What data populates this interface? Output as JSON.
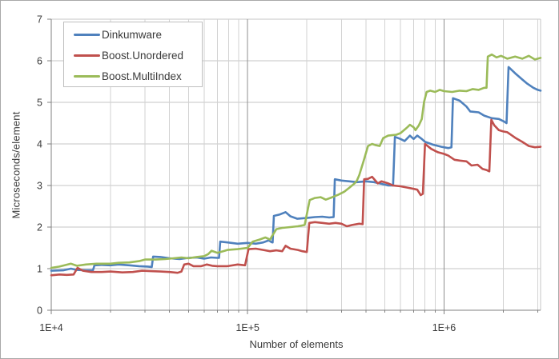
{
  "chart_data": {
    "type": "line",
    "title": "",
    "xlabel": "Number of elements",
    "ylabel": "Microseconds/element",
    "x_scale": "log",
    "xlim": [
      10000,
      3100000
    ],
    "ylim": [
      0,
      7
    ],
    "y_ticks": [
      0,
      1,
      2,
      3,
      4,
      5,
      6,
      7
    ],
    "x_ticks": [
      {
        "value": 10000,
        "label": "1E+4"
      },
      {
        "value": 100000,
        "label": "1E+5"
      },
      {
        "value": 1000000,
        "label": "1E+6"
      }
    ],
    "grid": true,
    "legend_position": "top-left",
    "series": [
      {
        "name": "Dinkumware",
        "color": "#4F81BD",
        "points": [
          [
            10000,
            0.95
          ],
          [
            11500,
            0.96
          ],
          [
            12600,
            1.0
          ],
          [
            13500,
            0.97
          ],
          [
            15000,
            0.96
          ],
          [
            16300,
            0.96
          ],
          [
            16600,
            1.08
          ],
          [
            18000,
            1.09
          ],
          [
            20000,
            1.08
          ],
          [
            22000,
            1.1
          ],
          [
            25000,
            1.08
          ],
          [
            28000,
            1.06
          ],
          [
            31000,
            1.05
          ],
          [
            32500,
            1.04
          ],
          [
            33000,
            1.29
          ],
          [
            36000,
            1.28
          ],
          [
            40000,
            1.25
          ],
          [
            45000,
            1.23
          ],
          [
            50000,
            1.26
          ],
          [
            55000,
            1.27
          ],
          [
            60000,
            1.24
          ],
          [
            65000,
            1.27
          ],
          [
            70000,
            1.26
          ],
          [
            71500,
            1.26
          ],
          [
            72500,
            1.65
          ],
          [
            79000,
            1.63
          ],
          [
            89000,
            1.6
          ],
          [
            100000,
            1.62
          ],
          [
            110000,
            1.6
          ],
          [
            120000,
            1.63
          ],
          [
            128000,
            1.68
          ],
          [
            132000,
            1.64
          ],
          [
            134000,
            1.63
          ],
          [
            136000,
            2.27
          ],
          [
            145000,
            2.3
          ],
          [
            156000,
            2.36
          ],
          [
            165000,
            2.26
          ],
          [
            179000,
            2.2
          ],
          [
            200000,
            2.22
          ],
          [
            220000,
            2.24
          ],
          [
            240000,
            2.25
          ],
          [
            260000,
            2.23
          ],
          [
            274000,
            2.24
          ],
          [
            278000,
            3.15
          ],
          [
            300000,
            3.12
          ],
          [
            330000,
            3.1
          ],
          [
            360000,
            3.08
          ],
          [
            400000,
            3.1
          ],
          [
            440000,
            3.08
          ],
          [
            480000,
            3.04
          ],
          [
            520000,
            3.0
          ],
          [
            550000,
            3.0
          ],
          [
            562000,
            4.17
          ],
          [
            600000,
            4.12
          ],
          [
            630000,
            4.07
          ],
          [
            670000,
            4.2
          ],
          [
            700000,
            4.12
          ],
          [
            730000,
            4.2
          ],
          [
            770000,
            4.12
          ],
          [
            800000,
            4.05
          ],
          [
            880000,
            3.98
          ],
          [
            970000,
            3.93
          ],
          [
            1050000,
            3.9
          ],
          [
            1090000,
            3.92
          ],
          [
            1110000,
            5.1
          ],
          [
            1200000,
            5.04
          ],
          [
            1300000,
            4.9
          ],
          [
            1360000,
            4.78
          ],
          [
            1500000,
            4.76
          ],
          [
            1600000,
            4.68
          ],
          [
            1750000,
            4.62
          ],
          [
            1900000,
            4.6
          ],
          [
            2000000,
            4.55
          ],
          [
            2080000,
            4.5
          ],
          [
            2130000,
            5.85
          ],
          [
            2300000,
            5.7
          ],
          [
            2500000,
            5.55
          ],
          [
            2650000,
            5.45
          ],
          [
            2850000,
            5.35
          ],
          [
            3000000,
            5.3
          ],
          [
            3100000,
            5.28
          ]
        ]
      },
      {
        "name": "Boost.Unordered",
        "color": "#C0504D",
        "points": [
          [
            10000,
            0.84
          ],
          [
            11000,
            0.86
          ],
          [
            12000,
            0.85
          ],
          [
            13000,
            0.86
          ],
          [
            13600,
            1.02
          ],
          [
            14500,
            0.95
          ],
          [
            16000,
            0.92
          ],
          [
            18000,
            0.92
          ],
          [
            20000,
            0.93
          ],
          [
            23000,
            0.91
          ],
          [
            26000,
            0.92
          ],
          [
            29000,
            0.95
          ],
          [
            32000,
            0.94
          ],
          [
            36000,
            0.93
          ],
          [
            40000,
            0.92
          ],
          [
            44000,
            0.9
          ],
          [
            46000,
            0.93
          ],
          [
            47500,
            1.1
          ],
          [
            50000,
            1.12
          ],
          [
            53000,
            1.06
          ],
          [
            58000,
            1.06
          ],
          [
            62000,
            1.1
          ],
          [
            66000,
            1.07
          ],
          [
            70000,
            1.06
          ],
          [
            79000,
            1.06
          ],
          [
            89000,
            1.1
          ],
          [
            97000,
            1.08
          ],
          [
            101000,
            1.47
          ],
          [
            110000,
            1.48
          ],
          [
            120000,
            1.45
          ],
          [
            130000,
            1.42
          ],
          [
            140000,
            1.44
          ],
          [
            150000,
            1.42
          ],
          [
            156000,
            1.55
          ],
          [
            165000,
            1.48
          ],
          [
            180000,
            1.45
          ],
          [
            190000,
            1.42
          ],
          [
            200000,
            1.4
          ],
          [
            206000,
            2.1
          ],
          [
            220000,
            2.12
          ],
          [
            240000,
            2.1
          ],
          [
            260000,
            2.08
          ],
          [
            280000,
            2.1
          ],
          [
            300000,
            2.08
          ],
          [
            320000,
            2.02
          ],
          [
            340000,
            2.05
          ],
          [
            370000,
            2.08
          ],
          [
            385000,
            2.07
          ],
          [
            392000,
            3.15
          ],
          [
            410000,
            3.16
          ],
          [
            430000,
            3.21
          ],
          [
            460000,
            3.05
          ],
          [
            480000,
            3.1
          ],
          [
            520000,
            3.05
          ],
          [
            550000,
            3.0
          ],
          [
            600000,
            2.98
          ],
          [
            650000,
            2.95
          ],
          [
            700000,
            2.92
          ],
          [
            730000,
            2.9
          ],
          [
            760000,
            2.77
          ],
          [
            780000,
            2.8
          ],
          [
            800000,
            4.0
          ],
          [
            860000,
            3.88
          ],
          [
            930000,
            3.8
          ],
          [
            1000000,
            3.76
          ],
          [
            1050000,
            3.72
          ],
          [
            1130000,
            3.62
          ],
          [
            1200000,
            3.6
          ],
          [
            1300000,
            3.58
          ],
          [
            1380000,
            3.48
          ],
          [
            1480000,
            3.5
          ],
          [
            1570000,
            3.4
          ],
          [
            1650000,
            3.37
          ],
          [
            1700000,
            3.34
          ],
          [
            1740000,
            4.58
          ],
          [
            1800000,
            4.45
          ],
          [
            1900000,
            4.33
          ],
          [
            2000000,
            4.3
          ],
          [
            2100000,
            4.28
          ],
          [
            2300000,
            4.15
          ],
          [
            2500000,
            4.05
          ],
          [
            2700000,
            3.95
          ],
          [
            2900000,
            3.92
          ],
          [
            3100000,
            3.93
          ]
        ]
      },
      {
        "name": "Boost.MultiIndex",
        "color": "#9BBB59",
        "points": [
          [
            10000,
            1.02
          ],
          [
            11000,
            1.05
          ],
          [
            12600,
            1.12
          ],
          [
            13500,
            1.07
          ],
          [
            15000,
            1.1
          ],
          [
            17000,
            1.12
          ],
          [
            20000,
            1.12
          ],
          [
            22000,
            1.14
          ],
          [
            25000,
            1.15
          ],
          [
            28000,
            1.18
          ],
          [
            30000,
            1.22
          ],
          [
            34000,
            1.22
          ],
          [
            38000,
            1.23
          ],
          [
            42000,
            1.25
          ],
          [
            46000,
            1.27
          ],
          [
            50000,
            1.25
          ],
          [
            55000,
            1.28
          ],
          [
            60000,
            1.3
          ],
          [
            63000,
            1.35
          ],
          [
            65500,
            1.43
          ],
          [
            70000,
            1.38
          ],
          [
            75000,
            1.42
          ],
          [
            79000,
            1.45
          ],
          [
            89000,
            1.47
          ],
          [
            100000,
            1.5
          ],
          [
            106000,
            1.65
          ],
          [
            115000,
            1.7
          ],
          [
            123000,
            1.75
          ],
          [
            130000,
            1.7
          ],
          [
            133000,
            1.78
          ],
          [
            140000,
            1.95
          ],
          [
            150000,
            1.98
          ],
          [
            165000,
            2.0
          ],
          [
            180000,
            2.02
          ],
          [
            195000,
            2.05
          ],
          [
            207000,
            2.65
          ],
          [
            220000,
            2.7
          ],
          [
            235000,
            2.72
          ],
          [
            250000,
            2.66
          ],
          [
            270000,
            2.72
          ],
          [
            290000,
            2.78
          ],
          [
            310000,
            2.85
          ],
          [
            330000,
            2.95
          ],
          [
            350000,
            3.05
          ],
          [
            360000,
            3.12
          ],
          [
            370000,
            3.25
          ],
          [
            390000,
            3.6
          ],
          [
            410000,
            3.95
          ],
          [
            430000,
            4.0
          ],
          [
            450000,
            3.97
          ],
          [
            470000,
            3.95
          ],
          [
            490000,
            4.14
          ],
          [
            520000,
            4.2
          ],
          [
            570000,
            4.22
          ],
          [
            600000,
            4.26
          ],
          [
            650000,
            4.4
          ],
          [
            670000,
            4.46
          ],
          [
            700000,
            4.4
          ],
          [
            715000,
            4.33
          ],
          [
            745000,
            4.45
          ],
          [
            770000,
            4.6
          ],
          [
            790000,
            5.0
          ],
          [
            815000,
            5.25
          ],
          [
            850000,
            5.28
          ],
          [
            900000,
            5.25
          ],
          [
            950000,
            5.3
          ],
          [
            1000000,
            5.27
          ],
          [
            1100000,
            5.25
          ],
          [
            1200000,
            5.28
          ],
          [
            1300000,
            5.27
          ],
          [
            1400000,
            5.32
          ],
          [
            1500000,
            5.3
          ],
          [
            1600000,
            5.35
          ],
          [
            1645000,
            5.35
          ],
          [
            1670000,
            6.1
          ],
          [
            1750000,
            6.15
          ],
          [
            1850000,
            6.08
          ],
          [
            1950000,
            6.12
          ],
          [
            2100000,
            6.05
          ],
          [
            2300000,
            6.1
          ],
          [
            2500000,
            6.05
          ],
          [
            2700000,
            6.12
          ],
          [
            2900000,
            6.03
          ],
          [
            3100000,
            6.07
          ]
        ]
      }
    ]
  },
  "colors": {
    "axis_line": "#808080",
    "tick": "#808080",
    "gridline_minor": "#d2d2d2",
    "gridline_major": "#8f8f8f",
    "gridline_horizontal": "#c6c6c6",
    "plot_right_border": "#c6c6c6",
    "text": "#3a3a3a",
    "legend_border": "#bfbfbf",
    "frame_border": "#a8a8a8"
  }
}
